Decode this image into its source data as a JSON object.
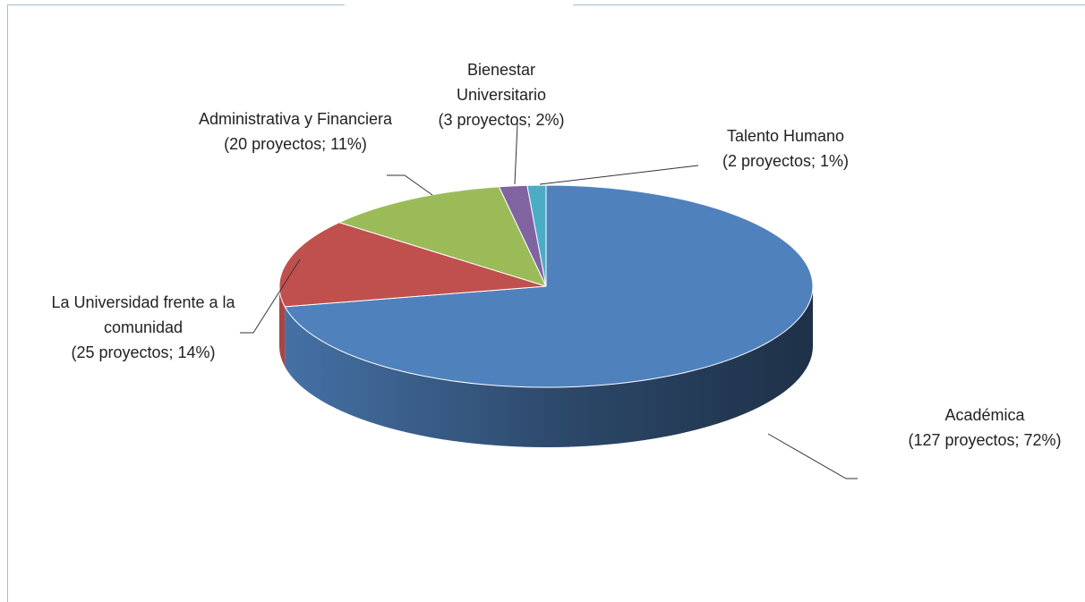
{
  "chart_data": {
    "type": "pie",
    "categories": [
      "Académica",
      "La Universidad frente a la comunidad",
      "Administrativa y Financiera",
      "Bienestar Universitario",
      "Talento Humano"
    ],
    "values": [
      127,
      25,
      20,
      3,
      2
    ],
    "value_labels": [
      "(127 proyectos; 72%)",
      "(25 proyectos; 14%)",
      "(20 proyectos; 11%)",
      "(3 proyectos; 2%)",
      "(2 proyectos; 1%)"
    ],
    "colors": [
      "#4f81bd",
      "#c0504d",
      "#9bbb59",
      "#8064a2",
      "#4bacc6"
    ]
  }
}
